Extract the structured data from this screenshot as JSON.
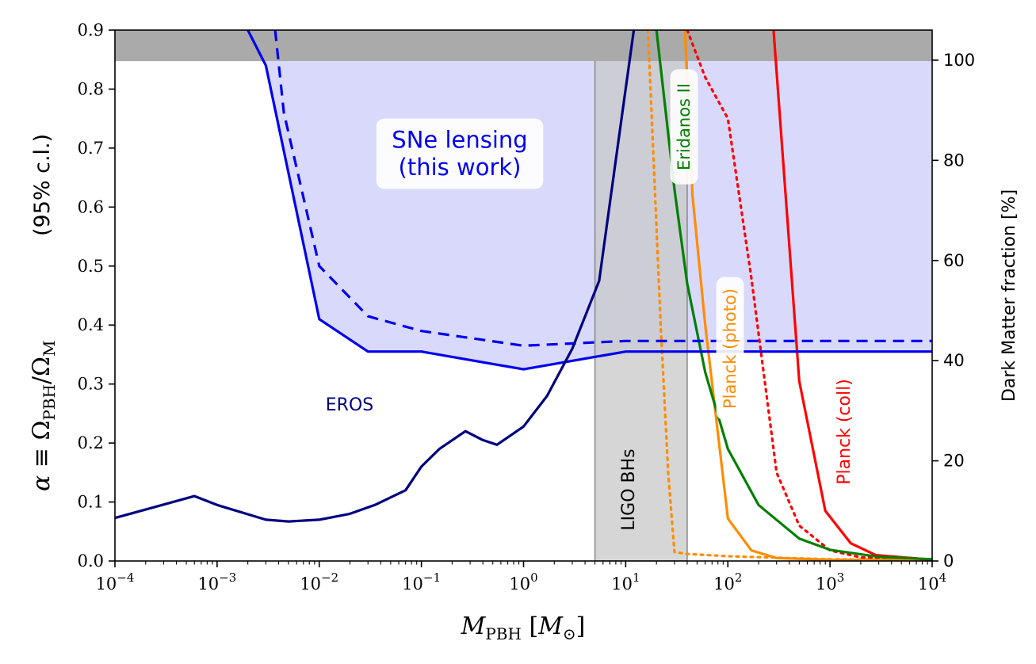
{
  "chart_data": {
    "type": "line",
    "xlabel": "M_PBH [M_⊙]",
    "ylabel": "α ≡ Ω_PBH/Ω_M",
    "ylabel_note": "(95% c.l.)",
    "y2label": "Dark Matter fraction [%]",
    "x_scale": "log",
    "xlim": [
      0.0001,
      10000
    ],
    "ylim": [
      0,
      0.9
    ],
    "y2lim": [
      0,
      106
    ],
    "grid": false,
    "x_ticks": [
      {
        "value": 0.0001,
        "base": "10",
        "exp": "−4"
      },
      {
        "value": 0.001,
        "base": "10",
        "exp": "−3"
      },
      {
        "value": 0.01,
        "base": "10",
        "exp": "−2"
      },
      {
        "value": 0.1,
        "base": "10",
        "exp": "−1"
      },
      {
        "value": 1,
        "base": "10",
        "exp": "0"
      },
      {
        "value": 10,
        "base": "10",
        "exp": "1"
      },
      {
        "value": 100,
        "base": "10",
        "exp": "2"
      },
      {
        "value": 1000,
        "base": "10",
        "exp": "3"
      },
      {
        "value": 10000,
        "base": "10",
        "exp": "4"
      }
    ],
    "y_ticks": [
      "0.0",
      "0.1",
      "0.2",
      "0.3",
      "0.4",
      "0.5",
      "0.6",
      "0.7",
      "0.8",
      "0.9"
    ],
    "y2_ticks": [
      "0",
      "20",
      "40",
      "60",
      "80",
      "100"
    ],
    "colors": {
      "sne": "#0000ee",
      "sne_fill": "#d9d9fb",
      "eros": "#000080",
      "planck_photo": "#ff8c00",
      "planck_coll": "#ff0000",
      "eridanos": "#008000",
      "ligo_band": "#c8c8c8",
      "top_band": "#aaaaaa"
    },
    "regions": {
      "top_band_y": [
        0.8475,
        0.9
      ],
      "ligo_band_x": [
        5,
        40
      ]
    },
    "series": [
      {
        "key": "sne_solid",
        "name": "SNe lensing (this work)",
        "style": "solid",
        "x": [
          0.002,
          0.003,
          0.01,
          0.03,
          0.1,
          1,
          10,
          10000
        ],
        "y": [
          0.9,
          0.84,
          0.41,
          0.355,
          0.355,
          0.325,
          0.355,
          0.355
        ]
      },
      {
        "key": "sne_dashed",
        "style": "dashed",
        "x": [
          0.0037,
          0.0045,
          0.01,
          0.03,
          0.1,
          1,
          10,
          10000
        ],
        "y": [
          0.9,
          0.76,
          0.5,
          0.415,
          0.39,
          0.365,
          0.373,
          0.373
        ]
      },
      {
        "key": "eros",
        "name": "EROS",
        "style": "solid",
        "x": [
          0.0001,
          0.0006,
          0.001,
          0.003,
          0.005,
          0.01,
          0.02,
          0.035,
          0.07,
          0.1,
          0.15,
          0.27,
          0.4,
          0.55,
          1,
          1.7,
          3,
          5.5,
          8,
          12
        ],
        "y": [
          0.073,
          0.11,
          0.095,
          0.07,
          0.067,
          0.07,
          0.08,
          0.095,
          0.12,
          0.16,
          0.19,
          0.22,
          0.205,
          0.197,
          0.228,
          0.28,
          0.36,
          0.475,
          0.68,
          0.9
        ]
      },
      {
        "key": "planck_photo",
        "name": "Planck (photo)",
        "style": "solid",
        "x": [
          38,
          45,
          60,
          100,
          170,
          300,
          1000,
          10000
        ],
        "y": [
          0.9,
          0.62,
          0.4,
          0.072,
          0.018,
          0.005,
          0.002,
          0.0015
        ]
      },
      {
        "key": "planck_photo_dotted",
        "style": "dotted",
        "x": [
          16.5,
          18,
          22,
          26,
          30,
          40,
          100,
          1000,
          10000
        ],
        "y": [
          0.9,
          0.75,
          0.4,
          0.15,
          0.015,
          0.012,
          0.008,
          0.003,
          0.0015
        ]
      },
      {
        "key": "planck_coll",
        "name": "Planck (coll)",
        "style": "solid",
        "x": [
          280,
          500,
          900,
          1600,
          2800,
          10000
        ],
        "y": [
          0.9,
          0.305,
          0.085,
          0.03,
          0.01,
          0.002
        ]
      },
      {
        "key": "planck_coll_dotted",
        "style": "dotted",
        "x": [
          40,
          60,
          100,
          170,
          300,
          500,
          1000,
          2000,
          10000
        ],
        "y": [
          0.9,
          0.82,
          0.75,
          0.48,
          0.15,
          0.06,
          0.018,
          0.006,
          0.002
        ]
      },
      {
        "key": "eridanos",
        "name": "Eridanos II",
        "style": "solid",
        "x": [
          20,
          30,
          40,
          60,
          100,
          200,
          500,
          1000,
          3000,
          10000
        ],
        "y": [
          0.9,
          0.63,
          0.47,
          0.32,
          0.19,
          0.095,
          0.038,
          0.019,
          0.007,
          0.003
        ]
      }
    ],
    "annotations": {
      "sne_line1": "SNe lensing",
      "sne_line2": "(this work)",
      "eros": "EROS",
      "ligo": "LIGO BHs",
      "eridanos": "Eridanos II",
      "planck_photo": "Planck (photo)",
      "planck_coll": "Planck (coll)"
    }
  }
}
